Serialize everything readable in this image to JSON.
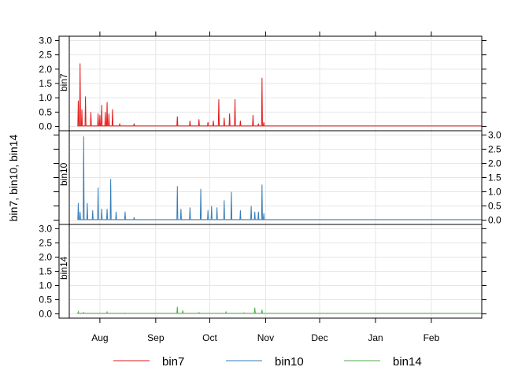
{
  "chart_data": {
    "type": "line",
    "layout": "three stacked panels sharing the x axis",
    "ylabel": "bin7, bin10, bin14",
    "x_ticks": [
      "Aug",
      "Sep",
      "Oct",
      "Nov",
      "Dec",
      "Jan",
      "Feb"
    ],
    "xlim": [
      "2016-07-15",
      "2017-03-01"
    ],
    "ylim": [
      -0.15,
      3.15
    ],
    "y_ticks": [
      "0.0",
      "0.5",
      "1.0",
      "1.5",
      "2.0",
      "2.5",
      "3.0"
    ],
    "grid": true,
    "legend_position": "bottom",
    "series": [
      {
        "name": "bin7",
        "color": "#e41a1c",
        "axis_side": "left",
        "peaks": [
          [
            "2016-07-20",
            0.9
          ],
          [
            "2016-07-21",
            2.2
          ],
          [
            "2016-07-22",
            0.6
          ],
          [
            "2016-07-24",
            1.05
          ],
          [
            "2016-07-27",
            0.5
          ],
          [
            "2016-07-31",
            0.45
          ],
          [
            "2016-08-01",
            0.4
          ],
          [
            "2016-08-02",
            0.75
          ],
          [
            "2016-08-04",
            0.5
          ],
          [
            "2016-08-05",
            0.85
          ],
          [
            "2016-08-06",
            0.45
          ],
          [
            "2016-08-08",
            0.6
          ],
          [
            "2016-08-12",
            0.1
          ],
          [
            "2016-08-20",
            0.1
          ],
          [
            "2016-09-13",
            0.35
          ],
          [
            "2016-09-20",
            0.2
          ],
          [
            "2016-09-25",
            0.25
          ],
          [
            "2016-09-30",
            0.15
          ],
          [
            "2016-10-03",
            0.2
          ],
          [
            "2016-10-06",
            0.95
          ],
          [
            "2016-10-09",
            0.3
          ],
          [
            "2016-10-12",
            0.45
          ],
          [
            "2016-10-15",
            0.95
          ],
          [
            "2016-10-18",
            0.2
          ],
          [
            "2016-10-25",
            0.4
          ],
          [
            "2016-10-28",
            0.1
          ],
          [
            "2016-10-30",
            1.7
          ],
          [
            "2016-10-31",
            0.15
          ]
        ]
      },
      {
        "name": "bin10",
        "color": "#377eb8",
        "axis_side": "right",
        "peaks": [
          [
            "2016-07-20",
            0.6
          ],
          [
            "2016-07-21",
            0.3
          ],
          [
            "2016-07-23",
            2.95
          ],
          [
            "2016-07-25",
            0.6
          ],
          [
            "2016-07-28",
            0.35
          ],
          [
            "2016-07-31",
            1.15
          ],
          [
            "2016-08-02",
            0.4
          ],
          [
            "2016-08-05",
            0.4
          ],
          [
            "2016-08-07",
            1.45
          ],
          [
            "2016-08-10",
            0.3
          ],
          [
            "2016-08-15",
            0.3
          ],
          [
            "2016-08-20",
            0.1
          ],
          [
            "2016-09-13",
            1.2
          ],
          [
            "2016-09-15",
            0.4
          ],
          [
            "2016-09-20",
            0.45
          ],
          [
            "2016-09-26",
            1.1
          ],
          [
            "2016-09-30",
            0.35
          ],
          [
            "2016-10-02",
            0.5
          ],
          [
            "2016-10-05",
            0.45
          ],
          [
            "2016-10-09",
            0.7
          ],
          [
            "2016-10-13",
            1.0
          ],
          [
            "2016-10-18",
            0.35
          ],
          [
            "2016-10-24",
            0.5
          ],
          [
            "2016-10-26",
            0.3
          ],
          [
            "2016-10-28",
            0.3
          ],
          [
            "2016-10-30",
            1.25
          ],
          [
            "2016-10-31",
            0.25
          ]
        ]
      },
      {
        "name": "bin14",
        "color": "#4daf4a",
        "axis_side": "left",
        "peaks": [
          [
            "2016-07-20",
            0.08
          ],
          [
            "2016-07-23",
            0.05
          ],
          [
            "2016-08-05",
            0.07
          ],
          [
            "2016-08-15",
            0.03
          ],
          [
            "2016-09-13",
            0.25
          ],
          [
            "2016-09-16",
            0.12
          ],
          [
            "2016-09-25",
            0.05
          ],
          [
            "2016-10-10",
            0.07
          ],
          [
            "2016-10-20",
            0.04
          ],
          [
            "2016-10-26",
            0.22
          ],
          [
            "2016-10-30",
            0.15
          ]
        ]
      }
    ]
  }
}
